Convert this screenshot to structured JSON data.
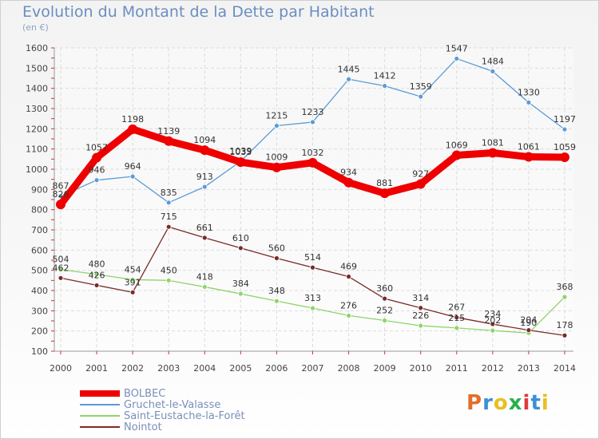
{
  "chart_data": {
    "type": "line",
    "title": "Evolution du Montant de la Dette par Habitant",
    "unit": "(en €)",
    "categories": [
      "2000",
      "2001",
      "2002",
      "2003",
      "2004",
      "2005",
      "2006",
      "2007",
      "2008",
      "2009",
      "2010",
      "2011",
      "2012",
      "2013",
      "2014"
    ],
    "ylim": [
      100,
      1600
    ],
    "yticks": [
      100,
      200,
      300,
      400,
      500,
      600,
      700,
      800,
      900,
      1000,
      1100,
      1200,
      1300,
      1400,
      1500,
      1600
    ],
    "grid": true,
    "series": [
      {
        "name": "BOLBEC",
        "color": "#ee0000",
        "values": [
          826,
          1057,
          1198,
          1139,
          1094,
          1035,
          1009,
          1032,
          934,
          881,
          927,
          1069,
          1081,
          1061,
          1059
        ]
      },
      {
        "name": "Gruchet-le-Valasse",
        "color": "#5b9bd5",
        "values": [
          867,
          946,
          964,
          835,
          913,
          1039,
          1215,
          1233,
          1445,
          1412,
          1359,
          1547,
          1484,
          1330,
          1197
        ]
      },
      {
        "name": "Saint-Eustache-la-Forêt",
        "color": "#8fd46a",
        "values": [
          504,
          480,
          454,
          450,
          418,
          384,
          348,
          313,
          276,
          252,
          226,
          215,
          202,
          190,
          368
        ]
      },
      {
        "name": "Nointot",
        "color": "#7b2a2a",
        "values": [
          462,
          426,
          391,
          715,
          661,
          610,
          560,
          514,
          469,
          360,
          314,
          267,
          234,
          204,
          178
        ]
      }
    ]
  },
  "legend": [
    "BOLBEC",
    "Gruchet-le-Valasse",
    "Saint-Eustache-la-Forêt",
    "Nointot"
  ],
  "logo": {
    "text": "Proxiti",
    "colors": [
      "#e0702a",
      "#3c8fd8",
      "#e8c020",
      "#2ab04a",
      "#e03a3a",
      "#3c8fd8",
      "#e8c020"
    ]
  }
}
